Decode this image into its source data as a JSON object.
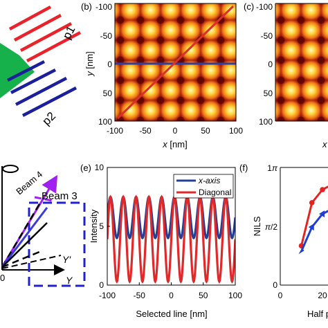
{
  "panel_labels": {
    "b": "(b)",
    "c": "(c)",
    "e": "(e)",
    "f": "(f)"
  },
  "panel_a": {
    "grating_labels": [
      "p1",
      "p2"
    ],
    "colors": {
      "p1": "#e8232b",
      "p2": "#1c1f9a",
      "mask": "#17b14b"
    }
  },
  "panel_b": {
    "x_ticks": [
      "-100",
      "-50",
      "0",
      "50",
      "100"
    ],
    "y_ticks": [
      "-100",
      "-50",
      "0",
      "50",
      "100"
    ],
    "xlabel_var": "x",
    "xlabel_unit": " [nm]",
    "ylabel_var": "y",
    "ylabel_unit": " [nm]",
    "colors": {
      "horizontal_line": "#2f3f9c",
      "diagonal_line": "#d9302e"
    }
  },
  "panel_c": {
    "y_ticks": [
      "-100",
      "-50",
      "0",
      "50",
      "100"
    ],
    "xlabel_partial": "x"
  },
  "panel_d": {
    "labels": {
      "beam4": "Beam 4",
      "beam3": "Beam 3",
      "y_prime": "Y'",
      "y": "Y",
      "origin": "0"
    },
    "colors": {
      "beam4": "#a020f0",
      "beam3_box": "#2020d0",
      "lines": "#000000",
      "blue_line": "#3a3ae0"
    }
  },
  "chart_data": [
    {
      "type": "line",
      "panel": "e",
      "xlabel": "Selected line [nm]",
      "ylabel": "Intensity",
      "xlim": [
        -100,
        100
      ],
      "ylim": [
        0,
        10
      ],
      "x_ticks": [
        "-100",
        "-50",
        "0",
        "50",
        "100"
      ],
      "y_ticks": [
        "0",
        "5",
        "10"
      ],
      "legend_position": "top-right",
      "series": [
        {
          "name": "x-axis",
          "color": "#233f94",
          "function": "cosine",
          "min": 4,
          "max": 7.5,
          "period_nm": 20
        },
        {
          "name": "Diagonal",
          "color": "#e02a2a",
          "function": "cosine",
          "min": 0.3,
          "max": 7.5,
          "period_nm": 20
        }
      ]
    },
    {
      "type": "line",
      "panel": "f",
      "ylabel": "NILS",
      "xlabel_partial": "Half p",
      "x_ticks": [
        "0",
        "20"
      ],
      "y_ticks": [
        "0",
        "π/2",
        "1π"
      ],
      "series": [
        {
          "name": "red",
          "color": "#e52222",
          "x": [
            10,
            15,
            20,
            25
          ],
          "y": [
            1.05,
            2.2,
            2.55,
            2.7
          ]
        },
        {
          "name": "blue",
          "color": "#1f3fd0",
          "x": [
            10,
            15,
            20,
            25
          ],
          "y": [
            0.9,
            1.55,
            1.9,
            2.05
          ]
        }
      ]
    }
  ]
}
